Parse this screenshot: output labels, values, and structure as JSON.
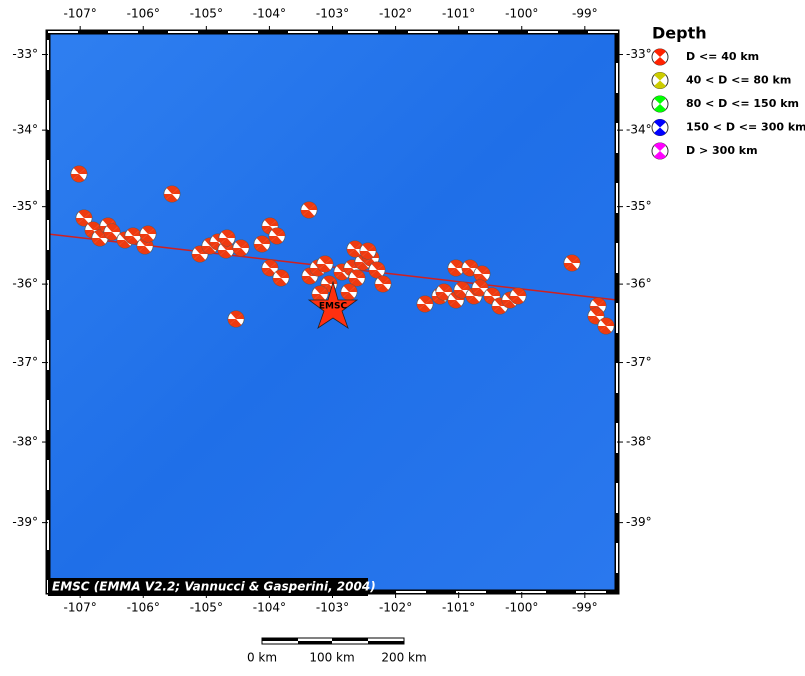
{
  "map": {
    "lon_lim": [
      -107.51,
      -98.49
    ],
    "lat_lim": [
      -32.7,
      -39.85
    ],
    "lon_ticks": [
      {
        "value": -107,
        "label": "-107°"
      },
      {
        "value": -106,
        "label": "-106°"
      },
      {
        "value": -105,
        "label": "-105°"
      },
      {
        "value": -104,
        "label": "-104°"
      },
      {
        "value": -103,
        "label": "-103°"
      },
      {
        "value": -102,
        "label": "-102°"
      },
      {
        "value": -101,
        "label": "-101°"
      },
      {
        "value": -100,
        "label": "-100°"
      },
      {
        "value": -99,
        "label": "-99°"
      }
    ],
    "lat_ticks": [
      {
        "value": -33,
        "label": "-33°"
      },
      {
        "value": -34,
        "label": "-34°"
      },
      {
        "value": -35,
        "label": "-35°"
      },
      {
        "value": -36,
        "label": "-36°"
      },
      {
        "value": -37,
        "label": "-37°"
      },
      {
        "value": -38,
        "label": "-38°"
      },
      {
        "value": -39,
        "label": "-39°"
      }
    ],
    "legend": {
      "title": "Depth",
      "items": [
        {
          "label": "D <= 40 km",
          "color": "#ff2200"
        },
        {
          "label": "40 < D <= 80 km",
          "color": "#cccc00"
        },
        {
          "label": "80 < D <= 150 km",
          "color": "#00ff00"
        },
        {
          "label": "150 < D <= 300 km",
          "color": "#0000ff"
        },
        {
          "label": "D > 300 km",
          "color": "#ff00ff"
        }
      ]
    },
    "epicenter_label": "EMSC",
    "credit": "EMSC (EMMA V2.2; Vannucci & Gasperini, 2004)",
    "scale_bar": [
      "0 km",
      "100 km",
      "200 km"
    ]
  }
}
